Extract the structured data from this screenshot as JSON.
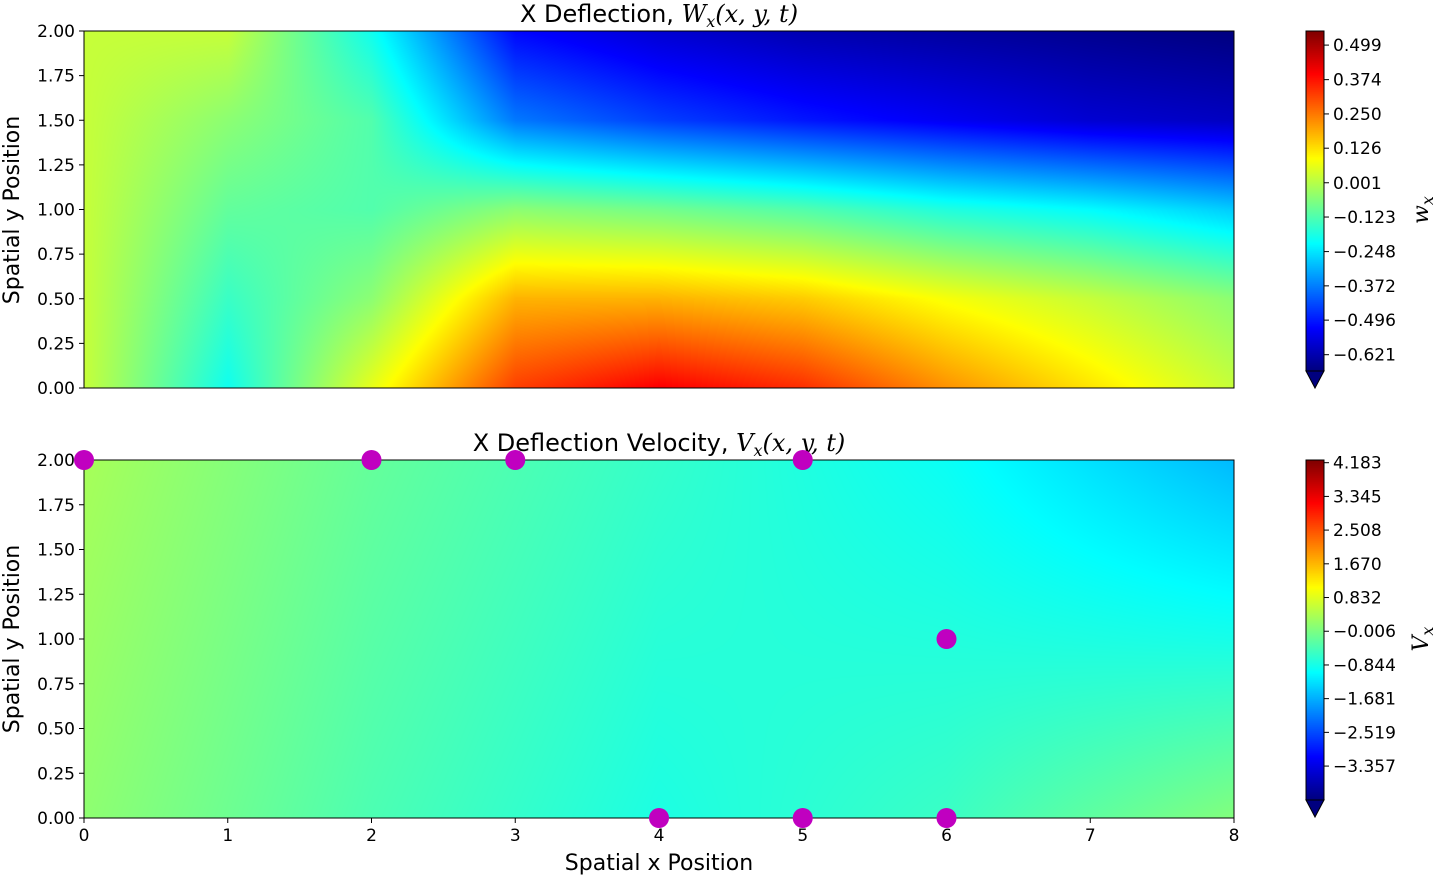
{
  "chart_data": [
    {
      "type": "heatmap",
      "title": "X Deflection, W_x(x,y,t)",
      "title_plain": "X Deflection, ",
      "title_math": "W",
      "title_math_sub": "x",
      "title_math_tail": "(x, y, t)",
      "xlabel": "",
      "ylabel": "Spatial y Position",
      "xlim": [
        0,
        8
      ],
      "ylim": [
        0,
        2
      ],
      "x_ticks": [],
      "y_ticks": [
        "0.00",
        "0.25",
        "0.50",
        "0.75",
        "1.00",
        "1.25",
        "1.50",
        "1.75",
        "2.00"
      ],
      "colormap": "jet",
      "colorbar": {
        "label": "w",
        "label_sub": "x",
        "range": [
          -0.68,
          0.55
        ],
        "ticks": [
          0.499,
          0.374,
          0.25,
          0.126,
          0.001,
          -0.123,
          -0.248,
          -0.372,
          -0.496,
          -0.621
        ],
        "tick_labels": [
          "0.499",
          "0.374",
          "0.250",
          "0.126",
          "0.001",
          "−0.123",
          "−0.248",
          "−0.372",
          "−0.496",
          "−0.621"
        ],
        "extend": "min"
      },
      "field_samples": {
        "x": [
          0,
          1,
          2,
          3,
          4,
          5,
          6,
          7,
          8
        ],
        "y": [
          0,
          0.5,
          1.0,
          1.5,
          2.0
        ],
        "values": [
          [
            0.02,
            -0.2,
            0.06,
            0.32,
            0.4,
            0.34,
            0.22,
            0.12,
            0.02
          ],
          [
            0.02,
            -0.15,
            -0.05,
            0.18,
            0.18,
            0.15,
            0.08,
            0.02,
            -0.05
          ],
          [
            0.02,
            -0.1,
            -0.12,
            -0.05,
            -0.08,
            -0.12,
            -0.18,
            -0.22,
            -0.28
          ],
          [
            0.02,
            -0.05,
            -0.12,
            -0.38,
            -0.45,
            -0.5,
            -0.54,
            -0.58,
            -0.6
          ],
          [
            0.02,
            0.02,
            -0.2,
            -0.52,
            -0.58,
            -0.62,
            -0.64,
            -0.66,
            -0.68
          ]
        ]
      },
      "markers": []
    },
    {
      "type": "heatmap",
      "title": "X Deflection Velocity, V_x(x,y,t)",
      "title_plain": "X Deflection Velocity, ",
      "title_math": "V",
      "title_math_sub": "x",
      "title_math_tail": "(x, y, t)",
      "xlabel": "Spatial x Position",
      "ylabel": "Spatial y Position",
      "xlim": [
        0,
        8
      ],
      "ylim": [
        0,
        2
      ],
      "x_ticks": [
        "0",
        "1",
        "2",
        "3",
        "4",
        "5",
        "6",
        "7",
        "8"
      ],
      "y_ticks": [
        "0.00",
        "0.25",
        "0.50",
        "0.75",
        "1.00",
        "1.25",
        "1.50",
        "1.75",
        "2.00"
      ],
      "colormap": "jet",
      "colorbar": {
        "label": "V",
        "label_sub": "x",
        "range": [
          -4.2,
          4.25
        ],
        "ticks": [
          4.183,
          3.345,
          2.508,
          1.67,
          0.832,
          -0.006,
          -0.844,
          -1.681,
          -2.519,
          -3.357
        ],
        "tick_labels": [
          "4.183",
          "3.345",
          "2.508",
          "1.670",
          "0.832",
          "−0.006",
          "−0.844",
          "−1.681",
          "−2.519",
          "−3.357"
        ],
        "extend": "min"
      },
      "field_samples": {
        "x": [
          0,
          2,
          4,
          6,
          8
        ],
        "y": [
          0,
          1,
          2
        ],
        "values": [
          [
            0.15,
            -0.4,
            -0.8,
            -0.55,
            0.05
          ],
          [
            0.25,
            -0.3,
            -0.7,
            -0.75,
            -0.85
          ],
          [
            0.35,
            -0.2,
            -0.6,
            -0.95,
            -1.6
          ]
        ]
      },
      "markers": {
        "color": "#c000c0",
        "points": [
          {
            "x": 0,
            "y": 2
          },
          {
            "x": 2,
            "y": 2
          },
          {
            "x": 3,
            "y": 2
          },
          {
            "x": 5,
            "y": 2
          },
          {
            "x": 6,
            "y": 1
          },
          {
            "x": 4,
            "y": 0
          },
          {
            "x": 5,
            "y": 0
          },
          {
            "x": 6,
            "y": 0
          }
        ]
      }
    }
  ]
}
